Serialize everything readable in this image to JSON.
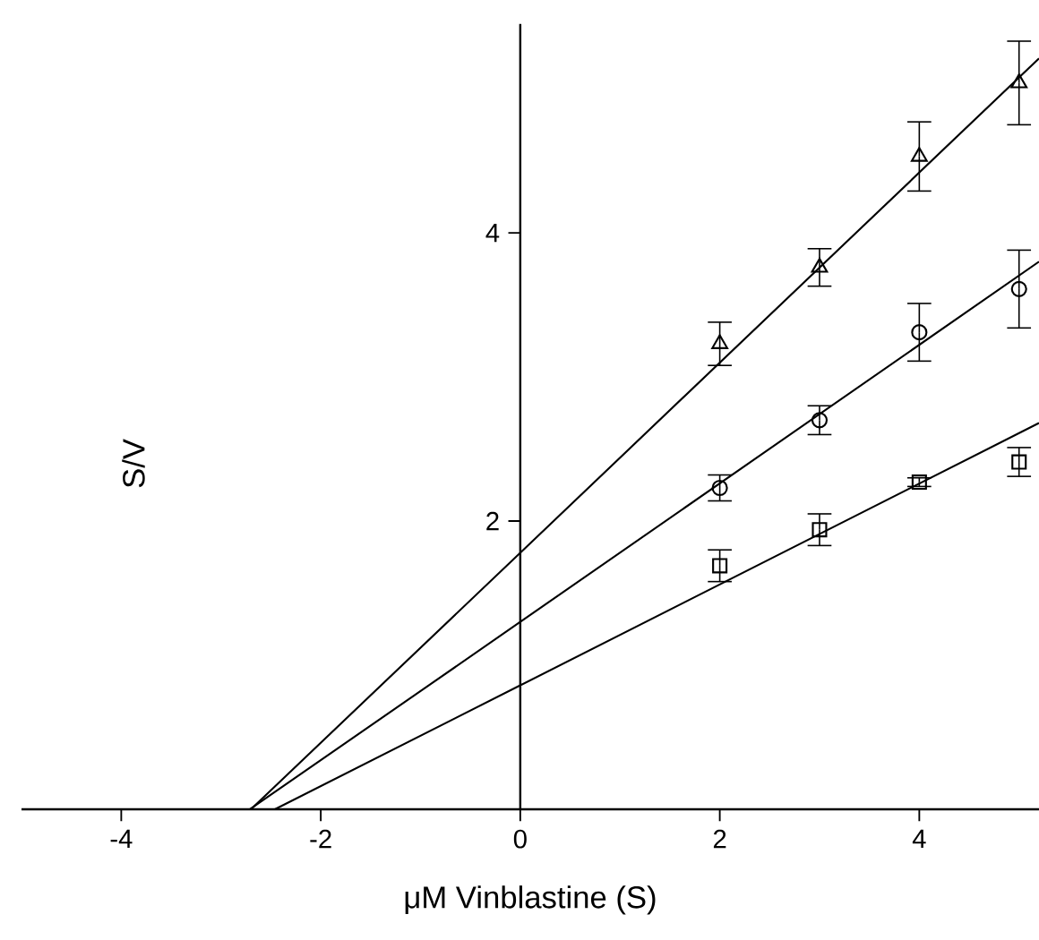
{
  "chart_data": {
    "type": "scatter",
    "xlabel": "μM Vinblastine (S)",
    "ylabel": "S/V",
    "xlim": [
      -5,
      5.2
    ],
    "ylim": [
      0,
      5.45
    ],
    "xticks": [
      -4,
      -2,
      0,
      2,
      4
    ],
    "yticks": [
      2,
      4
    ],
    "grid": false,
    "series": [
      {
        "marker": "triangle",
        "color": "#000000",
        "x": [
          2,
          3,
          4,
          5
        ],
        "values": [
          3.23,
          3.76,
          4.53,
          5.04
        ],
        "errors": [
          0.15,
          0.13,
          0.24,
          0.29
        ]
      },
      {
        "marker": "circle",
        "color": "#000000",
        "x": [
          2,
          3,
          4,
          5
        ],
        "values": [
          2.23,
          2.7,
          3.31,
          3.61
        ],
        "errors": [
          0.09,
          0.1,
          0.2,
          0.27
        ]
      },
      {
        "marker": "square",
        "color": "#000000",
        "x": [
          2,
          3,
          4,
          5
        ],
        "values": [
          1.69,
          1.94,
          2.27,
          2.41
        ],
        "errors": [
          0.11,
          0.11,
          0.03,
          0.1
        ]
      },
      {
        "type": "line",
        "marker": "none",
        "color": "#000000",
        "x": [
          -2.7,
          0,
          5.2
        ],
        "values": [
          0,
          1.78,
          5.21
        ]
      },
      {
        "type": "line",
        "marker": "none",
        "color": "#000000",
        "x": [
          -2.71,
          0,
          5.2
        ],
        "values": [
          0,
          1.3,
          3.8
        ]
      },
      {
        "type": "line",
        "marker": "none",
        "color": "#000000",
        "x": [
          -2.46,
          0,
          5.2
        ],
        "values": [
          0,
          0.86,
          2.68
        ]
      }
    ]
  }
}
